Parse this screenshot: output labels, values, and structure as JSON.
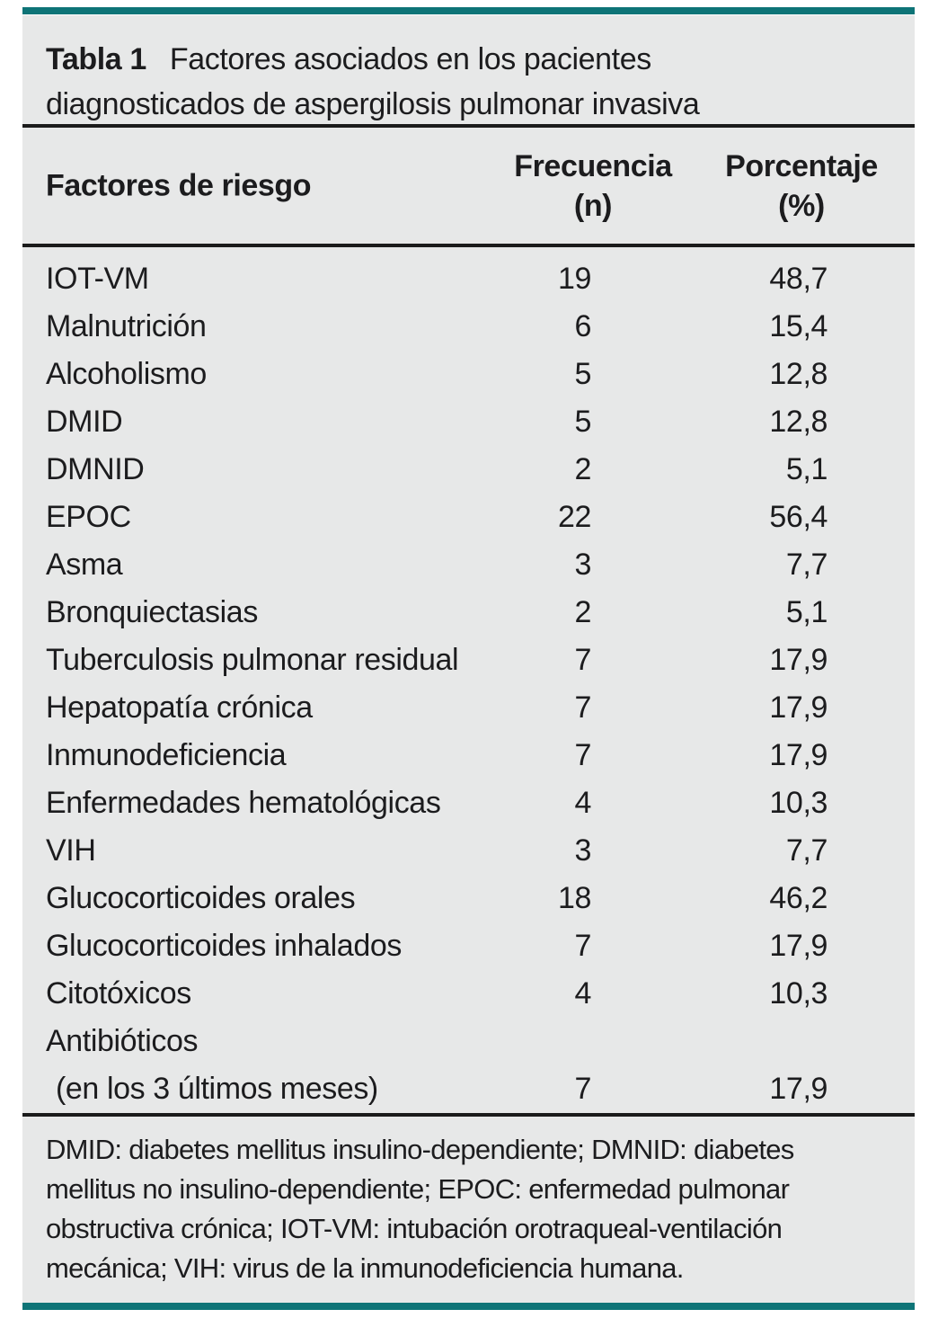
{
  "table": {
    "title_label": "Tabla 1",
    "title_line1": "Factores asociados en los pacientes",
    "title_line2": "diagnosticados de aspergilosis pulmonar invasiva",
    "columns": {
      "factor": "Factores de riesgo",
      "freq_line1": "Frecuencia",
      "freq_line2": "(n)",
      "pct_line1": "Porcentaje",
      "pct_line2": "(%)"
    },
    "rows": [
      {
        "factor": "IOT-VM",
        "freq": "19",
        "pct": "48,7"
      },
      {
        "factor": "Malnutrición",
        "freq": "6",
        "pct": "15,4"
      },
      {
        "factor": "Alcoholismo",
        "freq": "5",
        "pct": "12,8"
      },
      {
        "factor": "DMID",
        "freq": "5",
        "pct": "12,8"
      },
      {
        "factor": "DMNID",
        "freq": "2",
        "pct": "5,1"
      },
      {
        "factor": "EPOC",
        "freq": "22",
        "pct": "56,4"
      },
      {
        "factor": "Asma",
        "freq": "3",
        "pct": "7,7"
      },
      {
        "factor": "Bronquiectasias",
        "freq": "2",
        "pct": "5,1"
      },
      {
        "factor": "Tuberculosis pulmonar residual",
        "freq": "7",
        "pct": "17,9"
      },
      {
        "factor": "Hepatopatía crónica",
        "freq": "7",
        "pct": "17,9"
      },
      {
        "factor": "Inmunodeficiencia",
        "freq": "7",
        "pct": "17,9"
      },
      {
        "factor": "Enfermedades hematológicas",
        "freq": "4",
        "pct": "10,3"
      },
      {
        "factor": "VIH",
        "freq": "3",
        "pct": "7,7"
      },
      {
        "factor": "Glucocorticoides orales",
        "freq": "18",
        "pct": "46,2"
      },
      {
        "factor": "Glucocorticoides inhalados",
        "freq": "7",
        "pct": "17,9"
      },
      {
        "factor": "Citotóxicos",
        "freq": "4",
        "pct": "10,3"
      },
      {
        "factor": "Antibióticos",
        "factor2": "(en los 3 últimos meses)",
        "freq": "7",
        "pct": "17,9"
      }
    ],
    "footnote_lines": [
      "DMID: diabetes mellitus insulino-dependiente; DMNID: diabetes",
      "mellitus no insulino-dependiente; EPOC: enfermedad pulmonar",
      "obstructiva crónica; IOT-VM: intubación orotraqueal-ventilación",
      "mecánica; VIH: virus de la inmunodeficiencia humana."
    ]
  },
  "colors": {
    "accent_bar": "#0e7477",
    "panel_background": "#e7e8e8",
    "rule": "#1b1b1b",
    "text": "#1c1c1e"
  }
}
